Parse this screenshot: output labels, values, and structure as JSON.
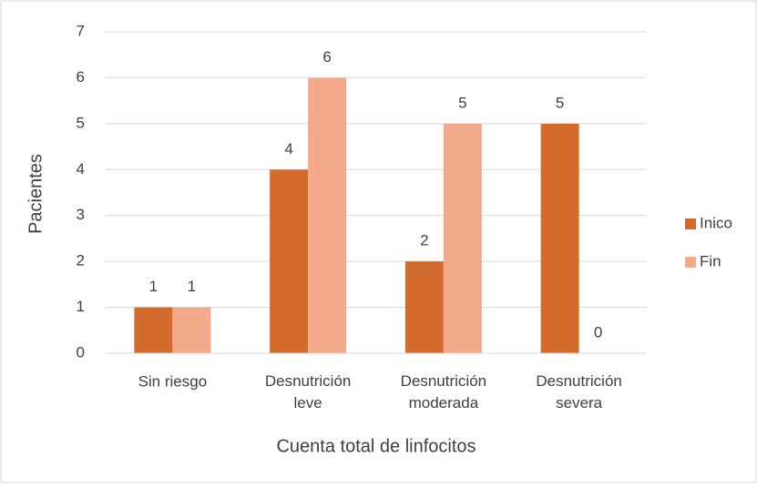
{
  "chart_data": {
    "type": "bar",
    "categories": [
      "Sin riesgo",
      "Desnutrición leve",
      "Desnutrición moderada",
      "Desnutrición severa"
    ],
    "series": [
      {
        "name": "Inico",
        "color": "#d26b2b",
        "values": [
          1,
          4,
          2,
          5
        ]
      },
      {
        "name": "Fin",
        "color": "#f4a98b",
        "values": [
          1,
          6,
          5,
          0
        ]
      }
    ],
    "ylim": [
      0,
      7
    ],
    "yticks": [
      0,
      1,
      2,
      3,
      4,
      5,
      6,
      7
    ],
    "grid": true,
    "y_label": "Pacientes",
    "x_label": "Cuenta total de linfocitos",
    "legend": "right"
  }
}
